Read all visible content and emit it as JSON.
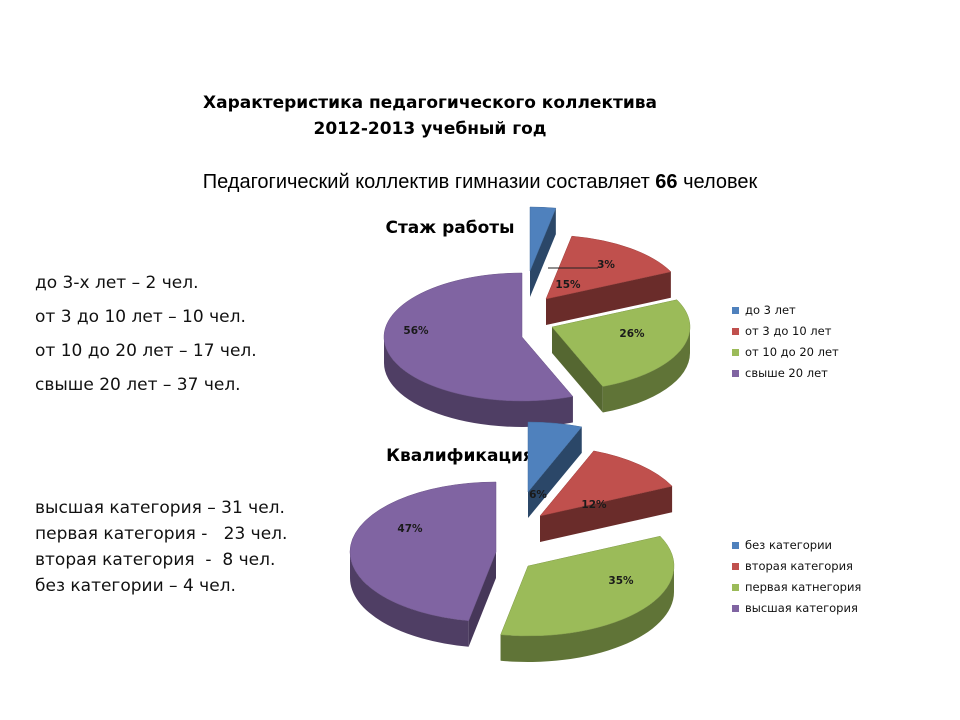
{
  "page": {
    "title_line1": "Характеристика педагогического коллектива",
    "title_line2": "2012-2013 учебный год",
    "subtitle_pre": "Педагогический коллектив гимназии составляет ",
    "subtitle_num": "66",
    "subtitle_post": " человек"
  },
  "section1": {
    "title": "Стаж работы",
    "facts": [
      "до 3-х лет – 2 чел.",
      "от 3 до 10 лет – 10 чел.",
      "от 10 до 20 лет – 17 чел.",
      "свыше 20 лет – 37 чел."
    ]
  },
  "section2": {
    "title": "Квалификация",
    "facts": [
      "высшая категория – 31 чел.",
      "первая категория -   23 чел.",
      "вторая категория  -  8 чел.",
      "без категории – 4 чел."
    ]
  },
  "chart_data": [
    {
      "type": "pie",
      "title": "Стаж работы",
      "categories": [
        "до 3 лет",
        "от 3 до 10 лет",
        "от 10 до 20 лет",
        "свыше 20 лет"
      ],
      "values": [
        3,
        15,
        26,
        56
      ],
      "labels": [
        "3%",
        "15%",
        "26%",
        "56%"
      ],
      "colors": [
        "#4f81bd",
        "#c0504d",
        "#9bbb59",
        "#8064a2"
      ],
      "legend": "right",
      "style": "3d-exploded"
    },
    {
      "type": "pie",
      "title": "Квалификация",
      "categories": [
        "без категории",
        "вторая категория",
        "первая катнегория",
        "высшая категория"
      ],
      "values": [
        6,
        12,
        35,
        47
      ],
      "labels": [
        "6%",
        "12%",
        "35%",
        "47%"
      ],
      "colors": [
        "#4f81bd",
        "#c0504d",
        "#9bbb59",
        "#8064a2"
      ],
      "legend": "right",
      "style": "3d-exploded"
    }
  ]
}
